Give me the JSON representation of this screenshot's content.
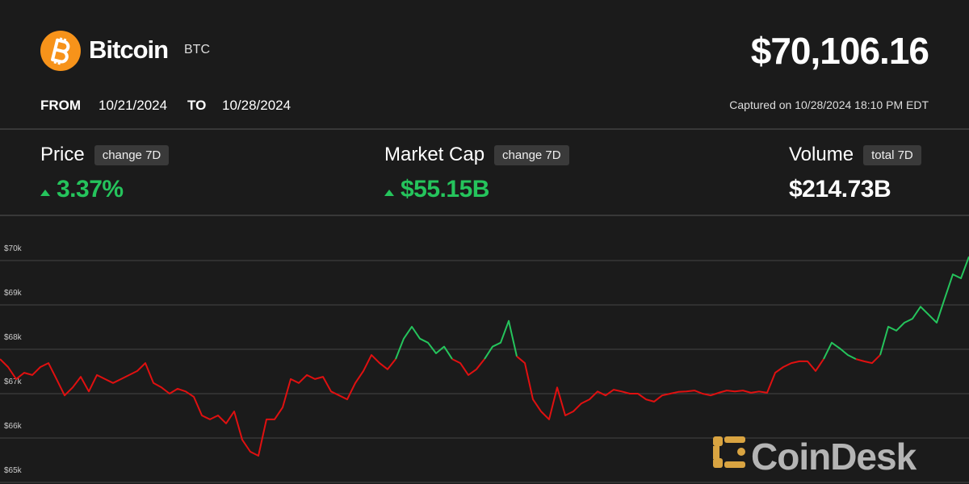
{
  "header": {
    "name": "Bitcoin",
    "symbol": "BTC",
    "price": "$70,106.16",
    "from_label": "FROM",
    "from": "10/21/2024",
    "to_label": "TO",
    "to": "10/28/2024",
    "captured": "Captured on 10/28/2024 18:10 PM EDT"
  },
  "stats": [
    {
      "label": "Price",
      "tag": "change 7D",
      "value": "3.37%",
      "direction": "up"
    },
    {
      "label": "Market Cap",
      "tag": "change 7D",
      "value": "$55.15B",
      "direction": "up"
    },
    {
      "label": "Volume",
      "tag": "total 7D",
      "value": "$214.73B"
    }
  ],
  "watermark": "CoinDesk",
  "chart_data": {
    "type": "line",
    "up_color": "#25c45c",
    "down_color": "#e01010",
    "grid": true,
    "ylim": [
      65000,
      71000
    ],
    "yticks": [
      {
        "value": 65000,
        "label": "$65k"
      },
      {
        "value": 66000,
        "label": "$66k"
      },
      {
        "value": 67000,
        "label": "$67k"
      },
      {
        "value": 68000,
        "label": "$68k"
      },
      {
        "value": 69000,
        "label": "$69k"
      },
      {
        "value": 70000,
        "label": "$70k"
      }
    ],
    "values": [
      67780,
      67600,
      67330,
      67470,
      67420,
      67600,
      67690,
      67330,
      66960,
      67140,
      67380,
      67050,
      67420,
      67330,
      67240,
      67330,
      67420,
      67510,
      67690,
      67240,
      67140,
      67000,
      67110,
      67050,
      66930,
      66510,
      66420,
      66510,
      66330,
      66600,
      65960,
      65690,
      65600,
      66420,
      66420,
      66690,
      67330,
      67240,
      67420,
      67330,
      67380,
      67050,
      66960,
      66870,
      67240,
      67510,
      67870,
      67690,
      67550,
      67780,
      68240,
      68510,
      68240,
      68150,
      67910,
      68060,
      67780,
      67690,
      67420,
      67550,
      67780,
      68060,
      68150,
      68640,
      67840,
      67690,
      66870,
      66600,
      66420,
      67140,
      66510,
      66600,
      66780,
      66870,
      67050,
      66960,
      67090,
      67050,
      67000,
      67000,
      66870,
      66820,
      66960,
      67000,
      67040,
      67050,
      67070,
      67000,
      66960,
      67020,
      67070,
      67050,
      67070,
      67020,
      67050,
      67020,
      67470,
      67600,
      67690,
      67730,
      67730,
      67510,
      67780,
      68150,
      68020,
      67870,
      67780,
      67730,
      67690,
      67870,
      68510,
      68420,
      68600,
      68690,
      68960,
      68780,
      68600,
      69150,
      69690,
      69600,
      70090
    ]
  }
}
